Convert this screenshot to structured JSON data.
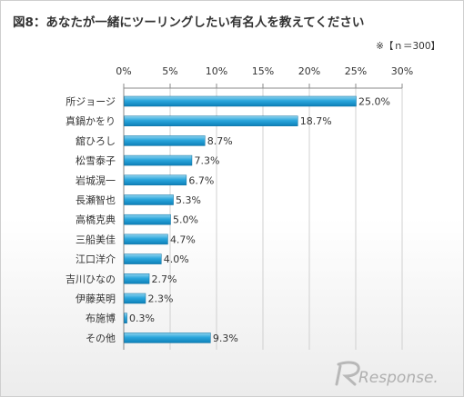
{
  "title": "図8：あなたが一緒にツーリングしたい有名人を教えてください",
  "sample_note": "※【ｎ＝300】",
  "logo_text": "Response.",
  "colors": {
    "bar_top": "#8fd3ee",
    "bar_mid": "#2aa6dc",
    "bar_bottom": "#0d7fb8",
    "grid": "#d0d0d0",
    "axis": "#888888",
    "text": "#333333"
  },
  "chart_data": {
    "type": "bar",
    "orientation": "horizontal",
    "title": "図8：あなたが一緒にツーリングしたい有名人を教えてください",
    "categories": [
      "所ジョージ",
      "真鍋かをり",
      "舘ひろし",
      "松雪泰子",
      "岩城滉一",
      "長瀬智也",
      "高橋克典",
      "三船美佳",
      "江口洋介",
      "吉川ひなの",
      "伊藤英明",
      "布施博",
      "その他"
    ],
    "values": [
      25.0,
      18.7,
      8.7,
      7.3,
      6.7,
      5.3,
      5.0,
      4.7,
      4.0,
      2.7,
      2.3,
      0.3,
      9.3
    ],
    "value_labels": [
      "25.0%",
      "18.7%",
      "8.7%",
      "7.3%",
      "6.7%",
      "5.3%",
      "5.0%",
      "4.7%",
      "4.0%",
      "2.7%",
      "2.3%",
      "0.3%",
      "9.3%"
    ],
    "x_ticks": [
      0,
      5,
      10,
      15,
      20,
      25,
      30
    ],
    "x_tick_labels": [
      "0%",
      "5%",
      "10%",
      "15%",
      "20%",
      "25%",
      "30%"
    ],
    "xlim": [
      0,
      30
    ],
    "axis_position": "top",
    "grid": true
  }
}
